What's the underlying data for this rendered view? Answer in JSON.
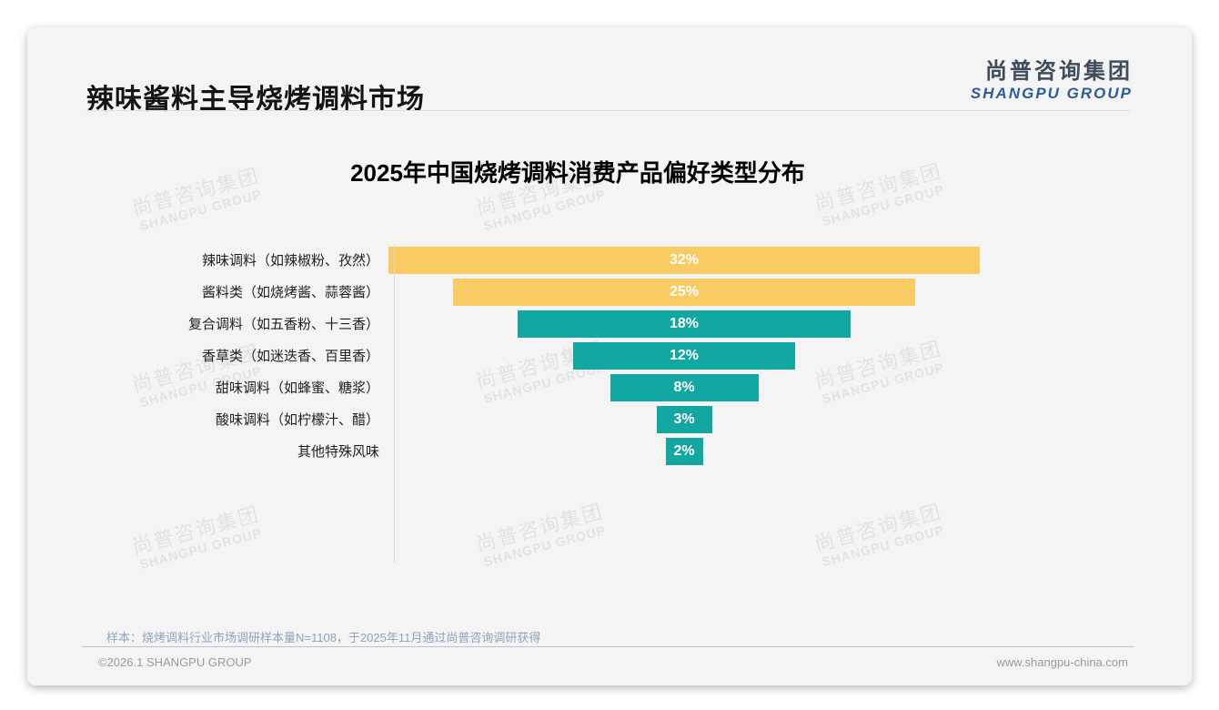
{
  "header": {
    "title": "辣味酱料主导烧烤调料市场",
    "logo": {
      "cn": "尚普咨询集团",
      "en": "SHANGPU GROUP"
    }
  },
  "chart_data": {
    "type": "bar",
    "subtype": "centered-funnel-horizontal",
    "title": "2025年中国烧烤调料消费产品偏好类型分布",
    "categories": [
      "辣味调料（如辣椒粉、孜然）",
      "酱料类（如烧烤酱、蒜蓉酱）",
      "复合调料（如五香粉、十三香）",
      "香草类（如迷迭香、百里香）",
      "甜味调料（如蜂蜜、糖浆）",
      "酸味调料（如柠檬汁、醋）",
      "其他特殊风味"
    ],
    "values": [
      32,
      25,
      18,
      12,
      8,
      3,
      2
    ],
    "unit": "%",
    "value_labels": [
      "32%",
      "25%",
      "18%",
      "12%",
      "8%",
      "3%",
      "2%"
    ],
    "bar_colors": [
      "#F9CB63",
      "#F9CB63",
      "#12A7A0",
      "#12A7A0",
      "#12A7A0",
      "#12A7A0",
      "#12A7A0"
    ],
    "xlim": [
      0,
      32
    ],
    "grid": false,
    "legend": false
  },
  "watermark": {
    "cn": "尚普咨询集团",
    "en": "SHANGPU GROUP"
  },
  "footnote": "样本：烧烤调料行业市场调研样本量N=1108，于2025年11月通过尚普咨询调研获得",
  "footer": {
    "left": "©2026.1 SHANGPU GROUP",
    "right": "www.shangpu-china.com"
  },
  "colors": {
    "accent_yellow": "#F9CB63",
    "accent_teal": "#12A7A0",
    "slide_background": "#f4f4f5"
  }
}
